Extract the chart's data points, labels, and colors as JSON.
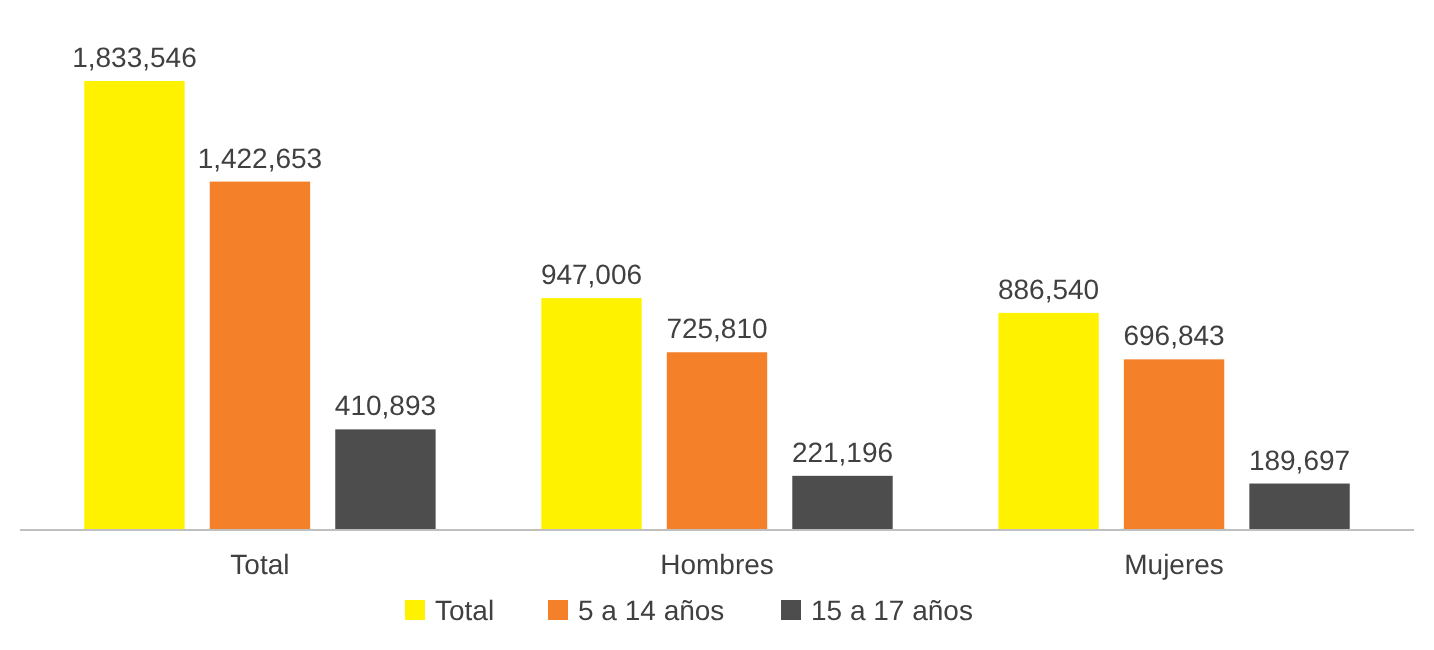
{
  "chart_data": {
    "type": "bar",
    "categories": [
      "Total",
      "Hombres",
      "Mujeres"
    ],
    "series": [
      {
        "name": "Total",
        "color": "#fff200",
        "values": [
          1833546,
          947006,
          886540
        ],
        "value_labels": [
          "1,833,546",
          "947,006",
          "886,540"
        ]
      },
      {
        "name": "5 a 14 años",
        "color": "#f4812a",
        "values": [
          1422653,
          725810,
          696843
        ],
        "value_labels": [
          "1,422,653",
          "725,810",
          "696,843"
        ]
      },
      {
        "name": "15 a 17 años",
        "color": "#4d4d4d",
        "values": [
          410893,
          221196,
          189697
        ],
        "value_labels": [
          "410,893",
          "221,196",
          "189,697"
        ]
      }
    ],
    "legend": "bottom"
  }
}
